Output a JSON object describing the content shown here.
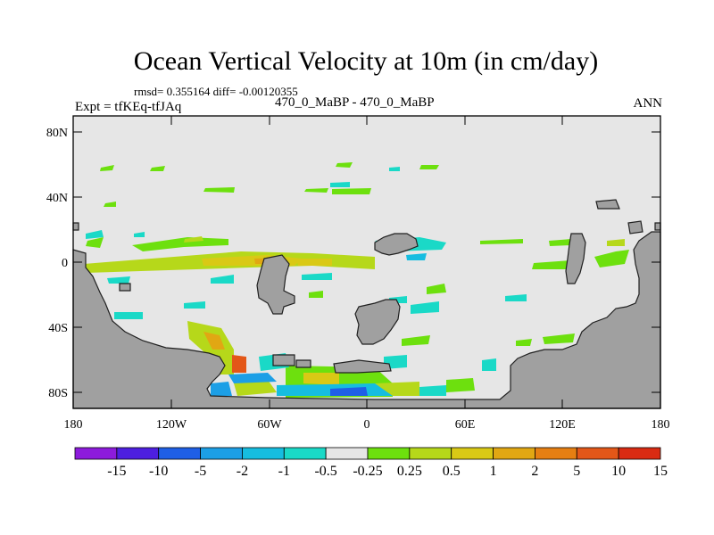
{
  "title": "Ocean Vertical Velocity at 10m (in cm/day)",
  "stats_text": "rmsd= 0.355164 diff= -0.00120355",
  "experiment": "Expt = tfKEq-tfJAq",
  "runs": "470_0_MaBP - 470_0_MaBP",
  "season": "ANN",
  "map": {
    "lat_ticks": [
      "80N",
      "40N",
      "0",
      "40S",
      "80S"
    ],
    "lon_ticks": [
      "180",
      "120W",
      "60W",
      "0",
      "60E",
      "120E",
      "180"
    ],
    "land_color": "#a0a0a0",
    "ocean_background": "#e6e6e6"
  },
  "colorbar": {
    "colors": [
      "#8d1bdc",
      "#4d1fe0",
      "#1f5fe6",
      "#1c9fe6",
      "#16bde0",
      "#1ad9c7",
      "#e6e6e6",
      "#6de00e",
      "#b6d81a",
      "#d9c915",
      "#e1a713",
      "#e67f12",
      "#e35718",
      "#d92b12"
    ],
    "labels": [
      "-15",
      "-10",
      "-5",
      "-2",
      "-1",
      "-0.5",
      "-0.25",
      "0.25",
      "0.5",
      "1",
      "2",
      "5",
      "10",
      "15"
    ]
  }
}
